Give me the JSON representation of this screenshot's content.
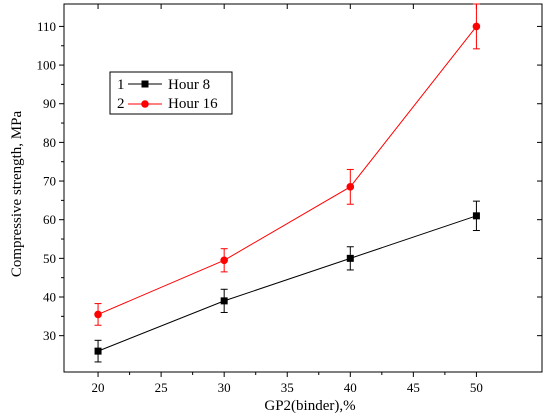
{
  "chart_data": {
    "type": "line",
    "title": "",
    "xlabel": "GP2(binder),%",
    "ylabel": "Compressive strength, MPa",
    "x": [
      20,
      30,
      40,
      50
    ],
    "xlim": [
      17.3,
      55.2
    ],
    "ylim": [
      20.6,
      115.8
    ],
    "x_ticks": [
      20,
      25,
      30,
      35,
      40,
      45,
      50
    ],
    "y_ticks": [
      30,
      40,
      50,
      60,
      70,
      80,
      90,
      100,
      110
    ],
    "x_tick_labels": [
      "20",
      "25",
      "30",
      "35",
      "40",
      "45",
      "50"
    ],
    "y_tick_labels": [
      "30",
      "40",
      "50",
      "60",
      "70",
      "80",
      "90",
      "100",
      "110"
    ],
    "grid": false,
    "legend_position": "upper-left",
    "series": [
      {
        "number": "1",
        "name": "Hour 8",
        "color": "#000000",
        "marker": "square",
        "values": [
          26,
          39,
          50,
          61
        ],
        "errors": [
          2.8,
          3.0,
          3.0,
          3.8
        ]
      },
      {
        "number": "2",
        "name": "Hour 16",
        "color": "#ff0000",
        "marker": "circle",
        "values": [
          35.5,
          49.5,
          68.5,
          110
        ],
        "errors": [
          2.8,
          3.0,
          4.5,
          5.8
        ]
      }
    ]
  }
}
